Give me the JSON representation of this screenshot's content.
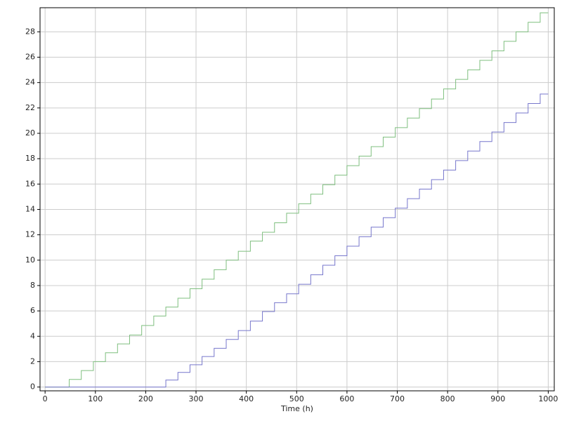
{
  "chart_data": {
    "type": "line",
    "step": "post",
    "x_label": "Time (h)",
    "xlim": [
      -10,
      1012
    ],
    "ylim": [
      -0.3,
      29.9
    ],
    "xticks": [
      0,
      100,
      200,
      300,
      400,
      500,
      600,
      700,
      800,
      900,
      1000
    ],
    "yticks": [
      0,
      2,
      4,
      6,
      8,
      10,
      12,
      14,
      16,
      18,
      20,
      22,
      24,
      26,
      28
    ],
    "grid": true,
    "series": [
      {
        "color": "#7fbf7f",
        "x": [
          0,
          48,
          72,
          96,
          120,
          144,
          168,
          192,
          216,
          240,
          264,
          288,
          312,
          336,
          360,
          384,
          408,
          432,
          456,
          480,
          504,
          528,
          552,
          576,
          600,
          624,
          648,
          672,
          696,
          720,
          744,
          768,
          792,
          816,
          840,
          864,
          888,
          912,
          936,
          960,
          984,
          1000
        ],
        "values": [
          0,
          0.6,
          1.3,
          2.0,
          2.7,
          3.4,
          4.1,
          4.85,
          5.6,
          6.3,
          7.0,
          7.75,
          8.5,
          9.25,
          10.0,
          10.7,
          11.5,
          12.2,
          12.95,
          13.7,
          14.45,
          15.2,
          15.95,
          16.7,
          17.45,
          18.2,
          18.95,
          19.7,
          20.45,
          21.2,
          21.95,
          22.7,
          23.5,
          24.25,
          25.0,
          25.75,
          26.5,
          27.25,
          28.0,
          28.75,
          29.5,
          29.5
        ]
      },
      {
        "color": "#7777cc",
        "x": [
          0,
          240,
          264,
          288,
          312,
          336,
          360,
          384,
          408,
          432,
          456,
          480,
          504,
          528,
          552,
          576,
          600,
          624,
          648,
          672,
          696,
          720,
          744,
          768,
          792,
          816,
          840,
          864,
          888,
          912,
          936,
          960,
          984,
          1000
        ],
        "values": [
          0,
          0.55,
          1.15,
          1.75,
          2.4,
          3.05,
          3.75,
          4.45,
          5.2,
          5.95,
          6.65,
          7.35,
          8.1,
          8.85,
          9.6,
          10.35,
          11.1,
          11.85,
          12.6,
          13.35,
          14.1,
          14.85,
          15.6,
          16.35,
          17.1,
          17.85,
          18.6,
          19.35,
          20.1,
          20.85,
          21.6,
          22.35,
          23.1,
          23.1
        ]
      }
    ]
  }
}
